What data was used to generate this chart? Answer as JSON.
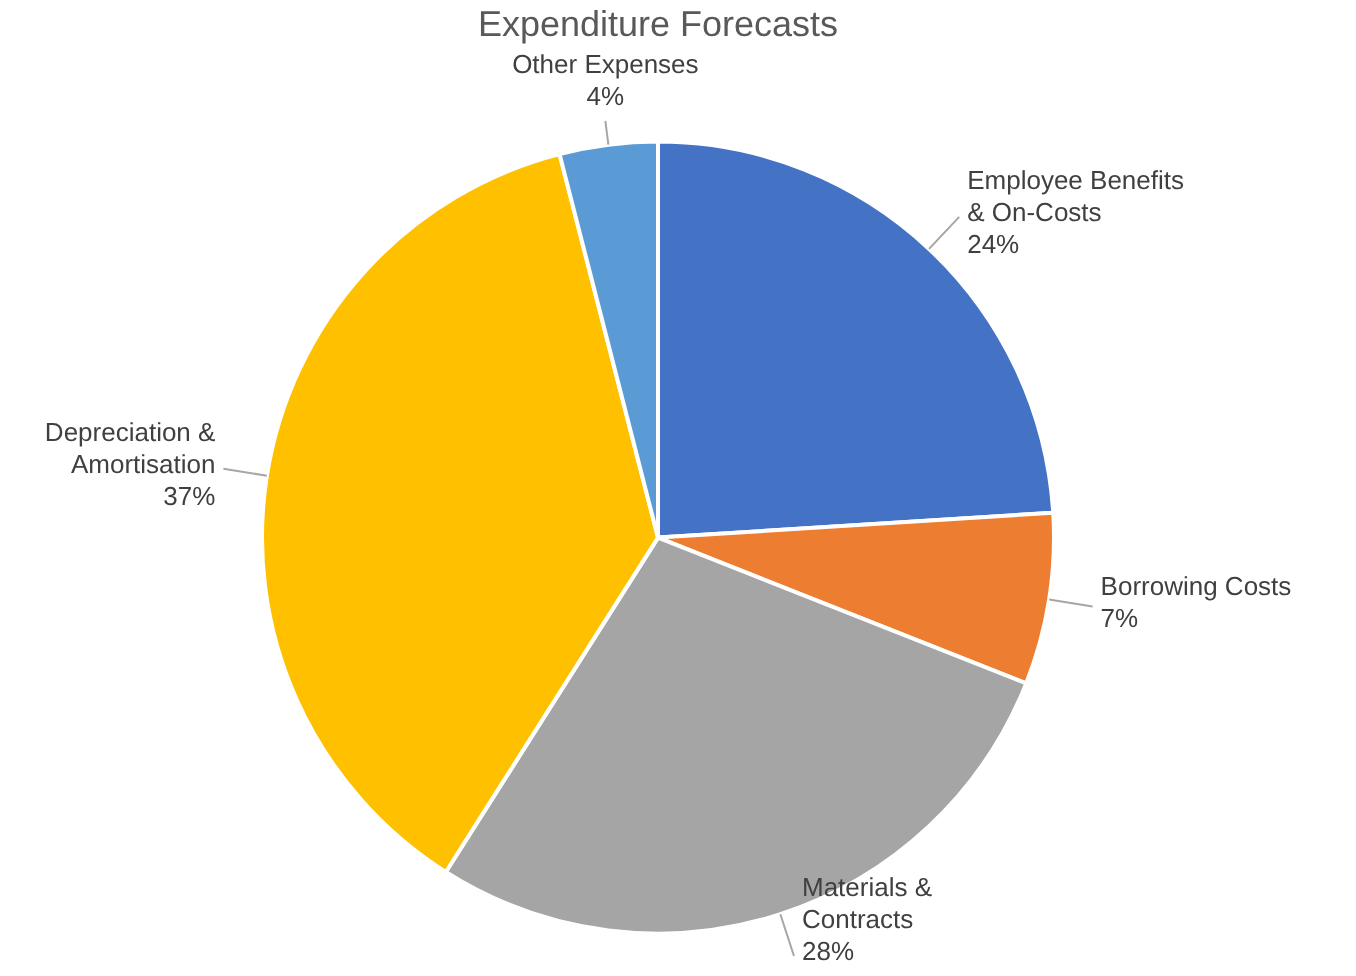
{
  "chart_data": {
    "type": "pie",
    "title": "Expenditure Forecasts",
    "categories": [
      "Employee Benefits & On-Costs",
      "Borrowing Costs",
      "Materials & Contracts",
      "Depreciation & Amortisation",
      "Other Expenses"
    ],
    "values": [
      24,
      7,
      28,
      37,
      4
    ],
    "value_labels": [
      "24%",
      "7%",
      "28%",
      "37%",
      "4%"
    ],
    "colors": [
      "#4472c4",
      "#ed7d31",
      "#a5a5a5",
      "#ffc000",
      "#5b9bd5"
    ],
    "legend": false
  }
}
